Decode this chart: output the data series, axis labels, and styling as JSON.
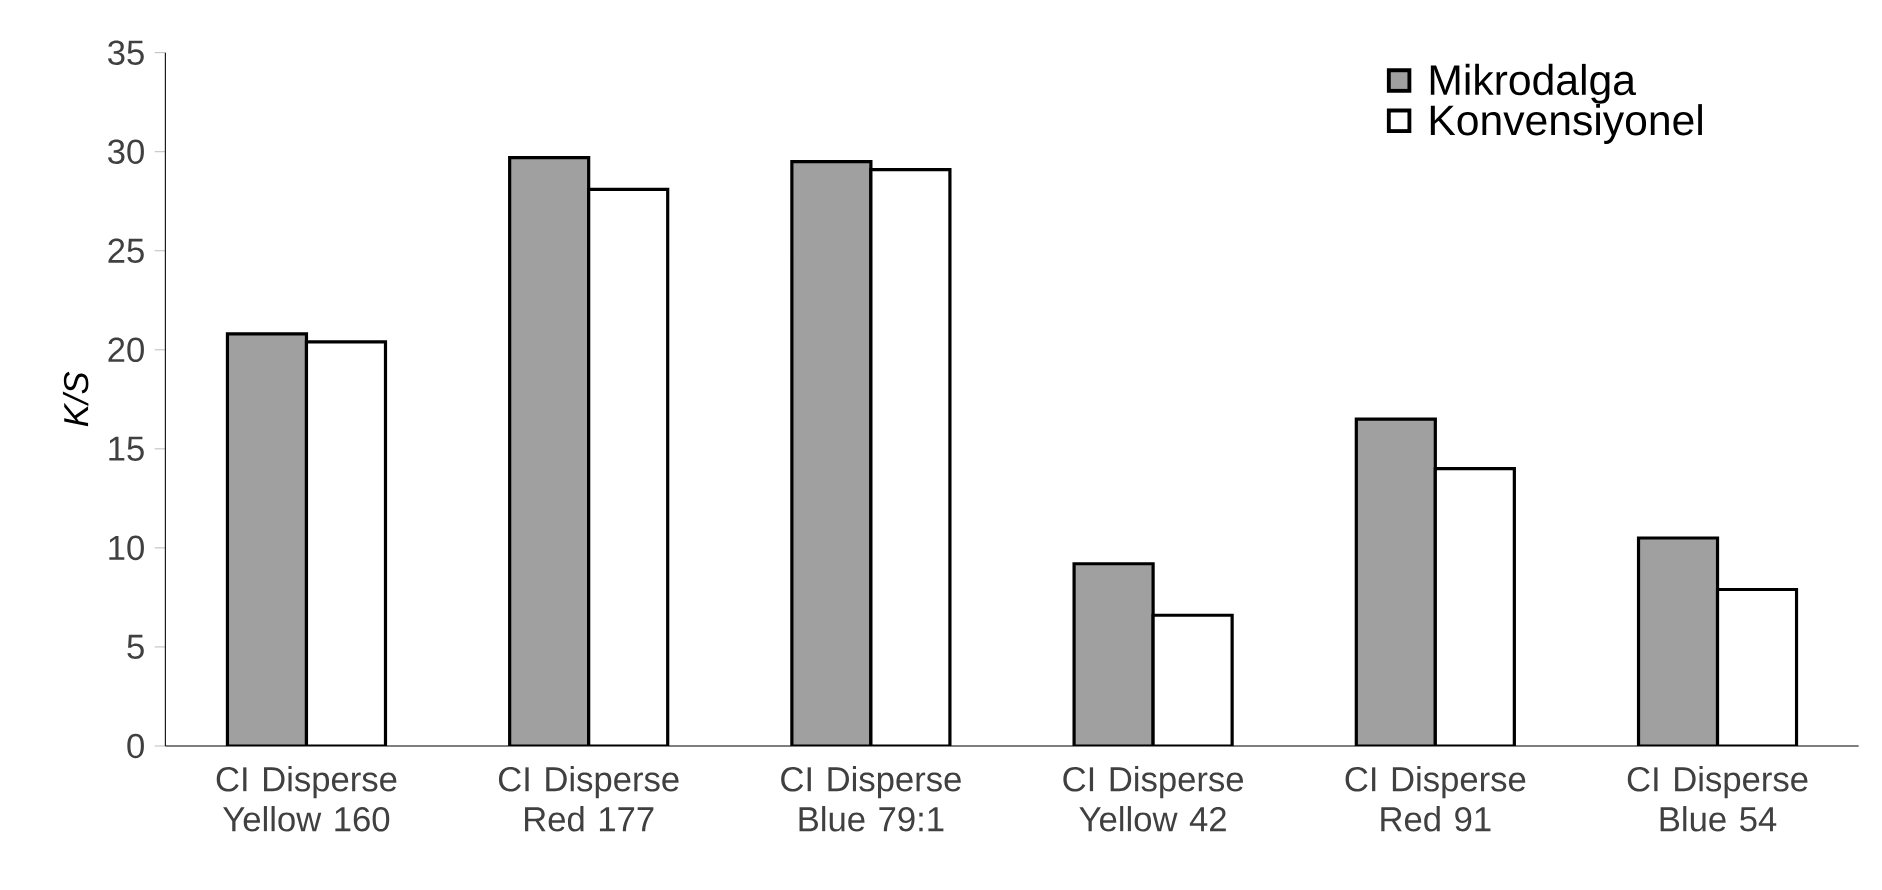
{
  "chart_data": {
    "type": "bar",
    "ylabel": "K/S",
    "categories": [
      "CI Disperse Yellow 160",
      "CI Disperse Red 177",
      "CI Disperse Blue 79:1",
      "CI Disperse Yellow 42",
      "CI Disperse Red 91",
      "CI Disperse Blue 54"
    ],
    "series": [
      {
        "name": "Mikrodalga",
        "color": "#a0a0a0",
        "values": [
          20.8,
          29.7,
          29.5,
          9.2,
          16.5,
          10.5
        ]
      },
      {
        "name": "Konvensiyonel",
        "color": "#ffffff",
        "values": [
          20.4,
          28.1,
          29.1,
          6.6,
          14.0,
          7.9
        ]
      }
    ],
    "ylim": [
      0,
      35
    ],
    "yticks": [
      0,
      5,
      10,
      15,
      20,
      25,
      30,
      35
    ],
    "legend": "top right",
    "grid": false
  }
}
